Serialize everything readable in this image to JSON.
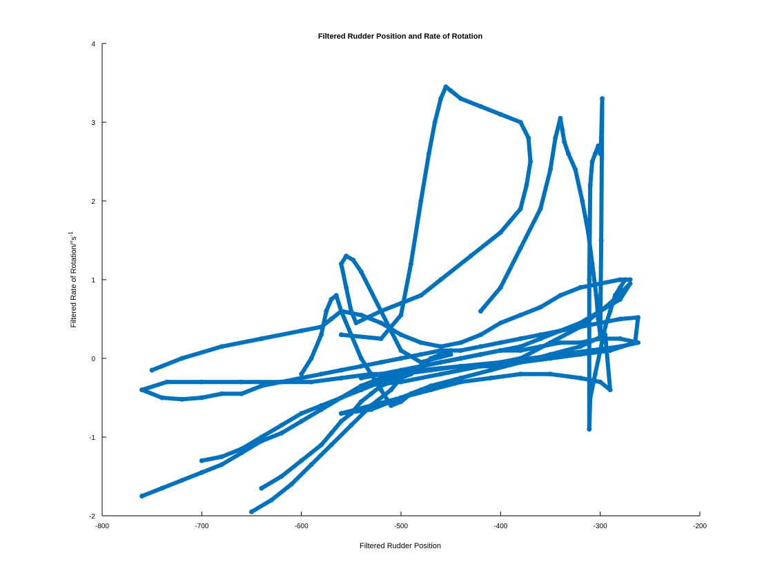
{
  "chart_data": {
    "type": "scatter",
    "title": "Filtered Rudder Position and Rate of Rotation",
    "xlabel": "Filtered Rudder Position",
    "ylabel": "Filtered Rate of Rotation/°s",
    "ylabel_superscript": "-1",
    "xlim": [
      -800,
      -200
    ],
    "ylim": [
      -2,
      4
    ],
    "xticks": [
      -800,
      -700,
      -600,
      -500,
      -400,
      -300,
      -200
    ],
    "yticks": [
      -2,
      -1,
      0,
      1,
      2,
      3,
      4
    ],
    "xtick_labels": [
      "-800",
      "-700",
      "-600",
      "-500",
      "-400",
      "-300",
      "-200"
    ],
    "ytick_labels": [
      "-2",
      "-1",
      "0",
      "1",
      "2",
      "3",
      "4"
    ],
    "grid": false,
    "legend": "none",
    "marker": "open-circle",
    "color": "#0072bd",
    "series": [
      {
        "x": [
          -560,
          -520,
          -500,
          -490,
          -480,
          -472,
          -466,
          -460,
          -455,
          -450,
          -440,
          -420,
          -400,
          -380,
          -372,
          -370,
          -374,
          -380,
          -400,
          -430,
          -460,
          -480,
          -500,
          -520,
          -545,
          -550,
          -555,
          -560,
          -555,
          -548,
          -540,
          -520,
          -500,
          -480,
          -450
        ],
        "y": [
          0.3,
          0.25,
          0.55,
          1.2,
          2.0,
          2.6,
          3.0,
          3.3,
          3.45,
          3.4,
          3.3,
          3.2,
          3.1,
          3.0,
          2.8,
          2.5,
          2.2,
          1.9,
          1.6,
          1.3,
          1.0,
          0.8,
          0.7,
          0.6,
          0.45,
          0.6,
          0.9,
          1.2,
          1.3,
          1.25,
          1.1,
          0.6,
          0.1,
          -0.05,
          0.05
        ]
      },
      {
        "x": [
          -750,
          -720,
          -680,
          -640,
          -600,
          -580,
          -570,
          -560,
          -540,
          -520,
          -500,
          -480,
          -460,
          -440,
          -420,
          -400,
          -380,
          -360,
          -340,
          -320,
          -300,
          -280,
          -270
        ],
        "y": [
          -0.15,
          0.0,
          0.15,
          0.25,
          0.35,
          0.4,
          0.5,
          0.6,
          0.55,
          0.45,
          0.3,
          0.2,
          0.15,
          0.2,
          0.3,
          0.45,
          0.55,
          0.65,
          0.8,
          0.9,
          0.95,
          1.0,
          1.0
        ]
      },
      {
        "x": [
          -760,
          -740,
          -720,
          -700,
          -680,
          -660,
          -640,
          -620,
          -600,
          -580,
          -560,
          -540,
          -520,
          -500,
          -480,
          -460,
          -440,
          -420,
          -400,
          -380,
          -360,
          -340,
          -320,
          -300,
          -280,
          -262,
          -265,
          -290,
          -320,
          -350,
          -380,
          -410,
          -440,
          -470,
          -500,
          -530,
          -560,
          -590,
          -620,
          -660,
          -700,
          -735,
          -760
        ],
        "y": [
          -0.4,
          -0.5,
          -0.52,
          -0.5,
          -0.45,
          -0.45,
          -0.35,
          -0.3,
          -0.25,
          -0.2,
          -0.15,
          -0.1,
          -0.05,
          0.0,
          0.05,
          0.1,
          0.1,
          0.15,
          0.2,
          0.25,
          0.3,
          0.35,
          0.4,
          0.45,
          0.5,
          0.52,
          0.2,
          0.1,
          0.05,
          0.0,
          -0.05,
          -0.1,
          -0.1,
          -0.15,
          -0.2,
          -0.2,
          -0.25,
          -0.3,
          -0.3,
          -0.3,
          -0.3,
          -0.3,
          -0.4
        ]
      },
      {
        "x": [
          -760,
          -740,
          -720,
          -700,
          -680,
          -660,
          -640,
          -620,
          -600,
          -580,
          -560,
          -540,
          -520,
          -500,
          -480,
          -460,
          -440,
          -420,
          -400,
          -380,
          -360,
          -340,
          -320,
          -300,
          -280,
          -262,
          -280,
          -310,
          -340,
          -370,
          -400,
          -440,
          -480,
          -520
        ],
        "y": [
          -1.75,
          -1.65,
          -1.55,
          -1.45,
          -1.35,
          -1.2,
          -1.05,
          -0.95,
          -0.8,
          -0.65,
          -0.5,
          -0.35,
          -0.25,
          -0.2,
          -0.1,
          -0.05,
          0.0,
          0.05,
          0.1,
          0.1,
          0.15,
          0.2,
          0.2,
          0.25,
          0.25,
          0.2,
          0.15,
          0.1,
          0.05,
          0.0,
          -0.05,
          -0.1,
          -0.15,
          -0.2
        ]
      },
      {
        "x": [
          -650,
          -630,
          -610,
          -590,
          -570,
          -550,
          -530,
          -510,
          -500,
          -490,
          -480,
          -470,
          -460,
          -450
        ],
        "y": [
          -1.95,
          -1.8,
          -1.6,
          -1.35,
          -1.1,
          -0.85,
          -0.6,
          -0.4,
          -0.25,
          -0.2,
          -0.1,
          0.0,
          0.05,
          0.1
        ]
      },
      {
        "x": [
          -700,
          -680,
          -660,
          -640,
          -620,
          -600,
          -580,
          -560,
          -540,
          -520,
          -500,
          -480,
          -460,
          -440,
          -420
        ],
        "y": [
          -1.3,
          -1.25,
          -1.15,
          -1.0,
          -0.85,
          -0.7,
          -0.6,
          -0.5,
          -0.4,
          -0.3,
          -0.2,
          -0.1,
          -0.05,
          0.0,
          0.05
        ]
      },
      {
        "x": [
          -640,
          -620,
          -600,
          -580,
          -570,
          -560,
          -550,
          -540,
          -530,
          -520,
          -510,
          -500
        ],
        "y": [
          -1.65,
          -1.5,
          -1.3,
          -1.1,
          -0.95,
          -0.8,
          -0.7,
          -0.55,
          -0.45,
          -0.35,
          -0.3,
          -0.25
        ]
      },
      {
        "x": [
          -600,
          -590,
          -580,
          -575,
          -570,
          -565,
          -560,
          -550,
          -540,
          -530,
          -520,
          -510,
          -500,
          -490,
          -480
        ],
        "y": [
          -0.2,
          0.0,
          0.3,
          0.6,
          0.75,
          0.8,
          0.6,
          0.3,
          0.0,
          -0.2,
          -0.4,
          -0.6,
          -0.55,
          -0.45,
          -0.4
        ]
      },
      {
        "x": [
          -420,
          -400,
          -380,
          -360,
          -350,
          -345,
          -340,
          -338,
          -336,
          -332,
          -325,
          -318,
          -312,
          -308,
          -304,
          -302,
          -300,
          -299,
          -298,
          -299,
          -300,
          -302,
          -305,
          -308,
          -310,
          -311,
          -311,
          -310,
          -305,
          -300,
          -295,
          -290,
          -285,
          -280,
          -275
        ],
        "y": [
          0.6,
          0.9,
          1.4,
          1.9,
          2.4,
          2.8,
          3.05,
          2.9,
          2.75,
          2.6,
          2.4,
          2.0,
          1.6,
          1.2,
          0.8,
          0.5,
          0.3,
          1.5,
          3.3,
          2.8,
          2.6,
          2.7,
          2.6,
          2.5,
          2.2,
          1.0,
          -0.9,
          -0.5,
          -0.2,
          0.1,
          0.4,
          0.6,
          0.8,
          0.9,
          1.0
        ]
      },
      {
        "x": [
          -540,
          -520,
          -500,
          -480,
          -460,
          -440,
          -420,
          -400,
          -380,
          -360,
          -340,
          -320,
          -300,
          -280,
          -270,
          -290,
          -320,
          -350,
          -380,
          -420,
          -460,
          -500,
          -540
        ],
        "y": [
          -0.25,
          -0.2,
          -0.15,
          -0.1,
          -0.05,
          0.0,
          0.05,
          0.1,
          0.15,
          0.25,
          0.35,
          0.45,
          0.6,
          0.75,
          0.95,
          0.7,
          0.4,
          0.2,
          0.0,
          -0.1,
          -0.2,
          -0.3,
          -0.35
        ]
      },
      {
        "x": [
          -560,
          -530,
          -500,
          -470,
          -440,
          -410,
          -380,
          -350,
          -320,
          -295,
          -290,
          -300,
          -320,
          -350,
          -380,
          -410,
          -440,
          -470,
          -500,
          -530,
          -560
        ],
        "y": [
          -0.7,
          -0.65,
          -0.5,
          -0.35,
          -0.25,
          -0.15,
          -0.05,
          0.05,
          0.15,
          0.3,
          -0.4,
          -0.3,
          -0.25,
          -0.2,
          -0.2,
          -0.25,
          -0.3,
          -0.4,
          -0.5,
          -0.6,
          -0.7
        ]
      }
    ]
  }
}
